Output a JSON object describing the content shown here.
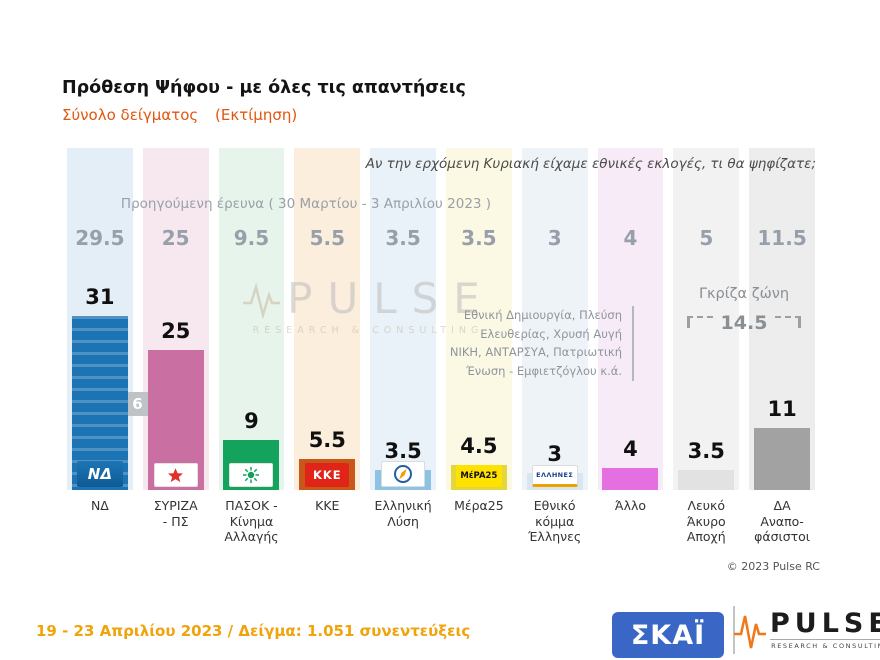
{
  "header": {
    "title": "Πρόθεση Ψήφου - με όλες τις απαντήσεις",
    "subtitle": "Σύνολο δείγματος",
    "estimate_note": "(Εκτίμηση)",
    "question": "Αν την ερχόμενη Κυριακή είχαμε εθνικές εκλογές, τι θα ψηφίζατε;",
    "previous_survey_note": "Προηγούμενη έρευνα  ( 30 Μαρτίου - 3 Απριλίου  2023 )"
  },
  "chart_data": {
    "type": "bar",
    "title": "Πρόθεση Ψήφου - με όλες τις απαντήσεις",
    "categories": [
      "ΝΔ",
      "ΣΥΡΙΖΑ - ΠΣ",
      "ΠΑΣΟΚ - Κίνημα Αλλαγής",
      "ΚΚΕ",
      "Ελληνική Λύση",
      "Μέρα25",
      "Εθνικό κόμμα Έλληνες",
      "Άλλο",
      "Λευκό Άκυρο Αποχή",
      "ΔΑ Αναποφάσιστοι"
    ],
    "series": [
      {
        "name": "Προηγούμενη έρευνα ( 30 Μαρτίου - 3 Απριλίου 2023 )",
        "values": [
          29.5,
          25,
          9.5,
          5.5,
          3.5,
          3.5,
          3,
          4,
          5,
          11.5
        ]
      },
      {
        "name": "Εκτίμηση ( 19 - 23 Απριλίου 2023 )",
        "values": [
          31,
          25,
          9,
          5.5,
          3.5,
          4.5,
          3,
          4,
          3.5,
          11
        ]
      }
    ],
    "lead_badge": "6",
    "gray_zone": {
      "label": "Γκρίζα ζώνη",
      "value": "14.5"
    },
    "other_parties_note": [
      "Εθνική Δημιουργία, Πλεύση",
      "Ελευθερίας, Χρυσή Αυγή",
      "ΝΙΚΗ, ΑΝΤΑΡΣΥΑ, Πατριωτική",
      "Ένωση - Εμφιετζόγλου  κ.ά."
    ],
    "legend_position": "none",
    "grid": false,
    "parties": [
      {
        "id": "nd",
        "label_lines": [
          "ΝΔ"
        ],
        "bar_color": "#1d74b4",
        "stripe_color": "#e4eef6",
        "logo": "nd",
        "logo_text": "ΝΔ"
      },
      {
        "id": "syriza-ps",
        "label_lines": [
          "ΣΥΡΙΖΑ",
          "- ΠΣ"
        ],
        "bar_color": "#ca6fa2",
        "stripe_color": "#f7e8f0",
        "logo": "syriza-star",
        "logo_text": ""
      },
      {
        "id": "pasok-kinal",
        "label_lines": [
          "ΠΑΣΟΚ -",
          "Κίνημα",
          "Αλλαγής"
        ],
        "bar_color": "#14a35c",
        "stripe_color": "#e6f4ec",
        "logo": "pasok-sun",
        "logo_text": ""
      },
      {
        "id": "kke",
        "label_lines": [
          "ΚΚΕ"
        ],
        "bar_color": "#c8571a",
        "stripe_color": "#fbeedd",
        "logo": "kke",
        "logo_text": "ΚΚΕ"
      },
      {
        "id": "elliniki-lysi",
        "label_lines": [
          "Ελληνική",
          "Λύση"
        ],
        "bar_color": "#8cc3e2",
        "stripe_color": "#e9f2f9",
        "logo": "compass",
        "logo_text": ""
      },
      {
        "id": "mera25",
        "label_lines": [
          "Μέρα25"
        ],
        "bar_color": "#e6d63e",
        "stripe_color": "#fbf8e3",
        "logo": "mera25",
        "logo_text": "MέPA25"
      },
      {
        "id": "ethniko-komma-ellines",
        "label_lines": [
          "Εθνικό",
          "κόμμα",
          "Έλληνες"
        ],
        "bar_color": "#d7e6f2",
        "stripe_color": "#eef3f8",
        "logo": "ellines",
        "logo_text": "ΕΛΛΗΝΕΣ"
      },
      {
        "id": "allo",
        "label_lines": [
          "Άλλο"
        ],
        "bar_color": "#e36fe0",
        "stripe_color": "#f6ebf6",
        "logo": null,
        "logo_text": ""
      },
      {
        "id": "lefko-akyro-apoxi",
        "label_lines": [
          "Λευκό",
          "Άκυρο",
          "Αποχή"
        ],
        "bar_color": "#e2e2e2",
        "stripe_color": "#f2f2f2",
        "logo": null,
        "logo_text": ""
      },
      {
        "id": "da-anapofasistoi",
        "label_lines": [
          "ΔΑ",
          "Αναπο-",
          "φάσιστοι"
        ],
        "bar_color": "#a2a2a2",
        "stripe_color": "#ededed",
        "logo": null,
        "logo_text": ""
      }
    ]
  },
  "watermark": {
    "brand": "PULSE",
    "tagline": "RESEARCH & CONSULTING"
  },
  "logos": {
    "skai": "ΣΚΑΪ",
    "pulse_brand": "PULSE",
    "pulse_tagline": "RESEARCH & CONSULTING"
  },
  "footer": {
    "fieldwork": "19 - 23  Απριλίου  2023  /  Δείγμα:  1.051 συνεντεύξεις",
    "copyright": "© 2023 Pulse RC"
  }
}
